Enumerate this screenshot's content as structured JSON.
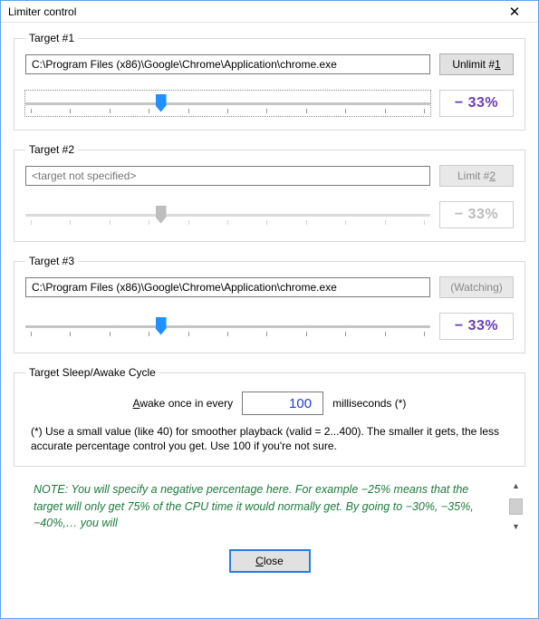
{
  "window": {
    "title": "Limiter control"
  },
  "targets": [
    {
      "legend": "Target #1",
      "path": "C:\\Program Files (x86)\\Google\\Chrome\\Application\\chrome.exe",
      "path_placeholder": "",
      "button": {
        "prefix": "Unlimit #",
        "accel": "1",
        "enabled": true
      },
      "slider": {
        "value": 33,
        "min": 0,
        "max": 100,
        "enabled": true,
        "focused": true
      },
      "percent": {
        "text": "− 33%",
        "enabled": true
      }
    },
    {
      "legend": "Target #2",
      "path": "",
      "path_placeholder": "<target not specified>",
      "button": {
        "prefix": "Limit #",
        "accel": "2",
        "enabled": false
      },
      "slider": {
        "value": 33,
        "min": 0,
        "max": 100,
        "enabled": false,
        "focused": false
      },
      "percent": {
        "text": "− 33%",
        "enabled": false
      }
    },
    {
      "legend": "Target #3",
      "path": "C:\\Program Files (x86)\\Google\\Chrome\\Application\\chrome.exe",
      "path_placeholder": "",
      "button": {
        "prefix": "",
        "accel": "(Watching)",
        "enabled": false
      },
      "slider": {
        "value": 33,
        "min": 0,
        "max": 100,
        "enabled": true,
        "focused": false
      },
      "percent": {
        "text": "− 33%",
        "enabled": true
      }
    }
  ],
  "cycle": {
    "legend": "Target Sleep/Awake Cycle",
    "label_prefix": "A",
    "label_rest": "wake once in every",
    "value": "100",
    "unit": "milliseconds (*)",
    "hint": "(*) Use a small value (like 40) for smoother playback (valid = 2...400).  The smaller it gets, the less accurate percentage control you get.  Use 100 if you're not sure."
  },
  "note": "NOTE:  You will specify a negative percentage here.  For example −25% means that the target will only get 75% of the CPU time it would normally get.  By going to −30%, −35%, −40%,… you will",
  "close": {
    "accel": "C",
    "rest": "lose"
  },
  "colors": {
    "accent_pct": "#6a3fb5",
    "note_color": "#1e7a3e",
    "input_number_color": "#2040d0"
  }
}
